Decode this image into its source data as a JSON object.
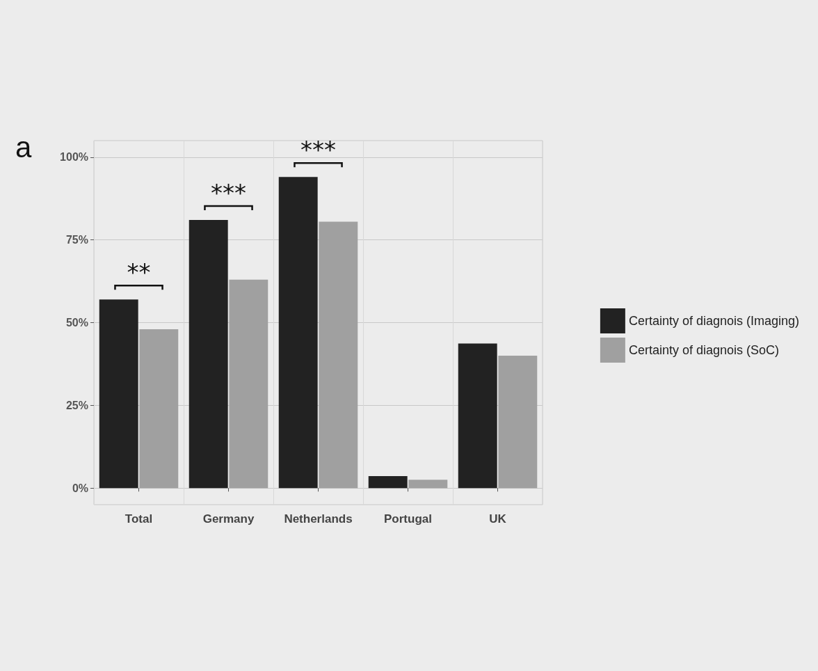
{
  "chart_data": {
    "type": "bar",
    "categories": [
      "Total",
      "Germany",
      "Netherlands",
      "Portugal",
      "UK"
    ],
    "series": [
      {
        "name": "Certainty of diagnois (Imaging)",
        "color": "#222222",
        "values": [
          57,
          81,
          94,
          3.6,
          43.7
        ]
      },
      {
        "name": "Certainty of diagnois (SoC)",
        "color": "#a0a0a0",
        "values": [
          48,
          63,
          80.5,
          2.5,
          40
        ]
      }
    ],
    "ylim": [
      -5,
      105
    ],
    "yticks": [
      {
        "value": 0,
        "label": "0%"
      },
      {
        "value": 25,
        "label": "25%"
      },
      {
        "value": 50,
        "label": "50%"
      },
      {
        "value": 75,
        "label": "75%"
      },
      {
        "value": 100,
        "label": "100%"
      }
    ],
    "grid": true,
    "legend": "right",
    "annotations": [
      "a",
      "**",
      "***",
      "***"
    ]
  }
}
